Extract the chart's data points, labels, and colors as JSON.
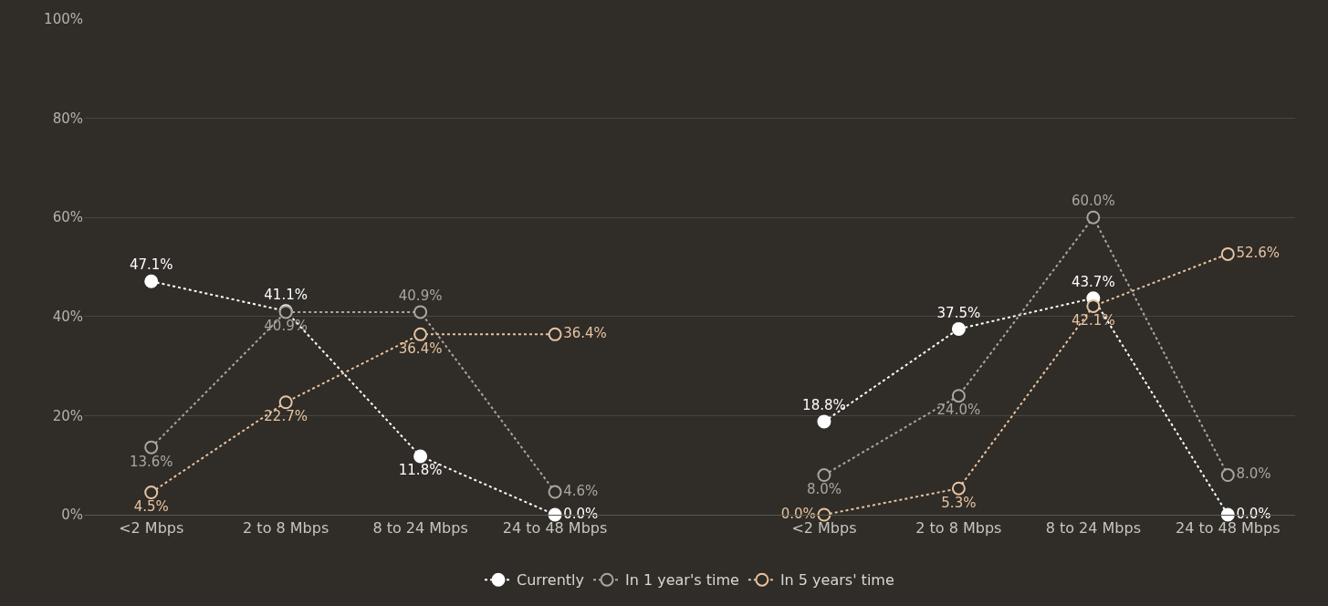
{
  "chart_data": {
    "type": "line",
    "categories": [
      "<2 Mbps",
      "2 to 8 Mbps",
      "8 to 24 Mbps",
      "24 to 48 Mbps",
      null,
      "<2 Mbps",
      "2 to 8 Mbps",
      "8 to 24 Mbps",
      "24 to 48 Mbps"
    ],
    "series": [
      {
        "name": "Currently",
        "color": "#ffffff",
        "values": [
          47.1,
          41.1,
          11.8,
          0.0,
          null,
          18.8,
          37.5,
          43.7,
          0.0
        ],
        "value_labels": [
          "47.1%",
          "41.1%",
          "11.8%",
          "0.0%",
          null,
          "18.8%",
          "37.5%",
          "43.7%",
          "0.0%"
        ]
      },
      {
        "name": "In 1 year's time",
        "color": "#a9a6a2",
        "values": [
          13.6,
          40.9,
          40.9,
          4.6,
          null,
          8.0,
          24.0,
          60.0,
          8.0
        ],
        "value_labels": [
          "13.6%",
          "40.9%",
          "40.9%",
          "4.6%",
          null,
          "8.0%",
          "24.0%",
          "60.0%",
          "8.0%"
        ]
      },
      {
        "name": "In 5 years' time",
        "color": "#e6c4a2",
        "values": [
          4.5,
          22.7,
          36.4,
          36.4,
          null,
          0.0,
          5.3,
          42.1,
          52.6
        ],
        "value_labels": [
          "4.5%",
          "22.7%",
          "36.4%",
          "36.4%",
          null,
          "0.0%",
          "5.3%",
          "42.1%",
          "52.6%"
        ]
      }
    ],
    "ylim": [
      0,
      100
    ],
    "yticks": [
      {
        "value": 0,
        "label": "0%"
      },
      {
        "value": 20,
        "label": "20%"
      },
      {
        "value": 40,
        "label": "40%"
      },
      {
        "value": 60,
        "label": "60%"
      },
      {
        "value": 80,
        "label": "80%"
      },
      {
        "value": 100,
        "label": "100%"
      }
    ],
    "grid": "y",
    "legend": "bottom",
    "marker": "circle",
    "line_style": "dotted"
  }
}
